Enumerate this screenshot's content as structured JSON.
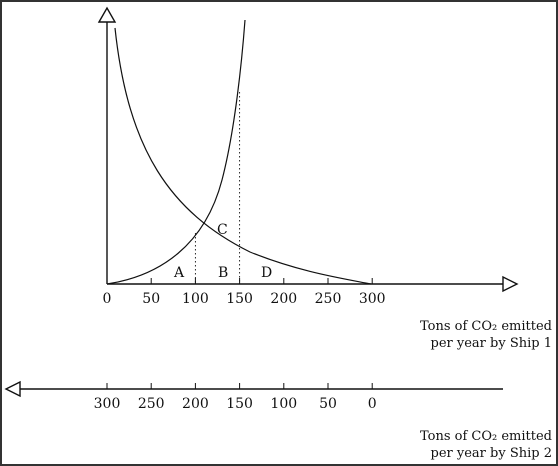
{
  "diagram": {
    "axis1": {
      "ticks": [
        "0",
        "50",
        "100",
        "150",
        "200",
        "250",
        "300"
      ],
      "caption_line1": "Tons of CO₂ emitted",
      "caption_line2": "per year by Ship 1"
    },
    "axis2": {
      "ticks": [
        "300",
        "250",
        "200",
        "150",
        "100",
        "50",
        "0"
      ],
      "caption_line1": "Tons of CO₂ emitted",
      "caption_line2": "per year by Ship 2"
    },
    "region_labels": {
      "a": "A",
      "b": "B",
      "c": "C",
      "d": "D"
    },
    "dotted_guides_at": [
      100,
      150
    ]
  }
}
